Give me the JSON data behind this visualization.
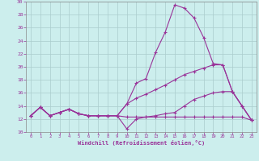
{
  "xlabel": "Windchill (Refroidissement éolien,°C)",
  "xlim": [
    -0.5,
    23.5
  ],
  "ylim": [
    10,
    30
  ],
  "xticks": [
    0,
    1,
    2,
    3,
    4,
    5,
    6,
    7,
    8,
    9,
    10,
    11,
    12,
    13,
    14,
    15,
    16,
    17,
    18,
    19,
    20,
    21,
    22,
    23
  ],
  "yticks": [
    10,
    12,
    14,
    16,
    18,
    20,
    22,
    24,
    26,
    28,
    30
  ],
  "background_color": "#cceeed",
  "grid_color": "#aacccc",
  "line_color": "#993399",
  "line1_x": [
    0,
    1,
    2,
    3,
    4,
    5,
    6,
    7,
    8,
    9,
    10,
    11,
    12,
    13,
    14,
    15,
    16,
    17,
    18,
    19,
    20,
    21,
    22,
    23
  ],
  "line1_y": [
    12.5,
    13.8,
    12.5,
    13.0,
    13.5,
    12.8,
    12.5,
    12.5,
    12.5,
    12.5,
    14.3,
    17.5,
    18.2,
    22.2,
    25.3,
    29.5,
    29.0,
    27.5,
    24.5,
    20.5,
    20.3,
    16.2,
    14.0,
    11.8
  ],
  "line2_x": [
    0,
    1,
    2,
    3,
    4,
    5,
    6,
    7,
    8,
    9,
    10,
    11,
    12,
    13,
    14,
    15,
    16,
    17,
    18,
    19,
    20,
    21,
    22,
    23
  ],
  "line2_y": [
    12.5,
    13.8,
    12.5,
    13.0,
    13.5,
    12.8,
    12.5,
    12.5,
    12.5,
    12.5,
    12.3,
    12.3,
    12.3,
    12.3,
    12.3,
    12.3,
    12.3,
    12.3,
    12.3,
    12.3,
    12.3,
    12.3,
    12.3,
    11.8
  ],
  "line3_x": [
    0,
    1,
    2,
    3,
    4,
    5,
    6,
    7,
    8,
    9,
    10,
    11,
    12,
    13,
    14,
    15,
    16,
    17,
    18,
    19,
    20,
    21,
    22,
    23
  ],
  "line3_y": [
    12.5,
    13.8,
    12.5,
    13.0,
    13.5,
    12.8,
    12.5,
    12.5,
    12.5,
    12.5,
    14.3,
    15.2,
    15.8,
    16.5,
    17.2,
    18.0,
    18.8,
    19.3,
    19.8,
    20.3,
    20.3,
    16.2,
    14.0,
    11.8
  ],
  "line4_x": [
    0,
    1,
    2,
    3,
    4,
    5,
    6,
    7,
    8,
    9,
    10,
    11,
    12,
    13,
    14,
    15,
    16,
    17,
    18,
    19,
    20,
    21,
    22,
    23
  ],
  "line4_y": [
    12.5,
    13.8,
    12.5,
    13.0,
    13.5,
    12.8,
    12.5,
    12.5,
    12.5,
    12.5,
    10.5,
    12.0,
    12.3,
    12.5,
    12.8,
    13.0,
    14.0,
    15.0,
    15.5,
    16.0,
    16.2,
    16.2,
    14.0,
    11.8
  ]
}
